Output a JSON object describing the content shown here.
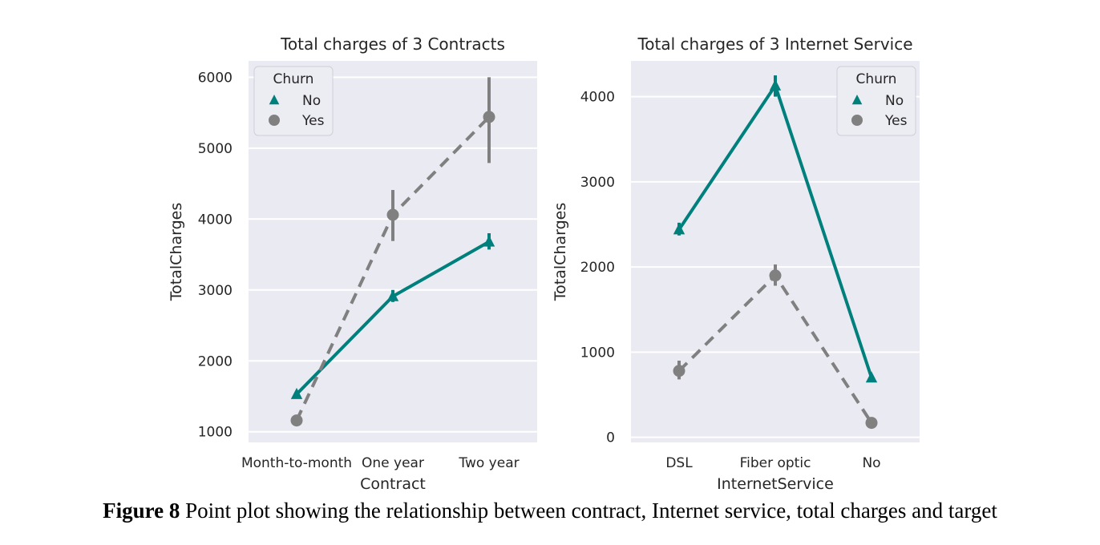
{
  "colors": {
    "no": "#00807c",
    "yes": "#808080",
    "panel_bg": "#eaeaf2",
    "grid": "#ffffff"
  },
  "chart_data": [
    {
      "type": "point",
      "title": "Total charges of 3 Contracts",
      "xlabel": "Contract",
      "ylabel": "TotalCharges",
      "categories": [
        "Month-to-month",
        "One year",
        "Two year"
      ],
      "ylim": [
        850,
        6230
      ],
      "yticks": [
        1000,
        2000,
        3000,
        4000,
        5000,
        6000
      ],
      "grid": true,
      "legend": {
        "title": "Churn",
        "placement": "top-left"
      },
      "series": [
        {
          "name": "No",
          "marker": "triangle",
          "linestyle": "solid",
          "color": "#00807c",
          "values": [
            1530,
            2910,
            3680
          ],
          "ci": [
            [
              1490,
              1570
            ],
            [
              2830,
              3000
            ],
            [
              3570,
              3800
            ]
          ]
        },
        {
          "name": "Yes",
          "marker": "circle",
          "linestyle": "dashed",
          "color": "#808080",
          "values": [
            1160,
            4060,
            5440
          ],
          "ci": [
            [
              1100,
              1230
            ],
            [
              3690,
              4410
            ],
            [
              4790,
              6000
            ]
          ]
        }
      ]
    },
    {
      "type": "point",
      "title": "Total charges of 3 Internet Service",
      "xlabel": "InternetService",
      "ylabel": "TotalCharges",
      "categories": [
        "DSL",
        "Fiber optic",
        "No"
      ],
      "ylim": [
        -60,
        4420
      ],
      "yticks": [
        0,
        1000,
        2000,
        3000,
        4000
      ],
      "grid": true,
      "legend": {
        "title": "Churn",
        "placement": "top-right"
      },
      "series": [
        {
          "name": "No",
          "marker": "triangle",
          "linestyle": "solid",
          "color": "#00807c",
          "values": [
            2440,
            4130,
            700
          ],
          "ci": [
            [
              2370,
              2520
            ],
            [
              4000,
              4250
            ],
            [
              680,
              720
            ]
          ]
        },
        {
          "name": "Yes",
          "marker": "circle",
          "linestyle": "dashed",
          "color": "#808080",
          "values": [
            780,
            1900,
            170
          ],
          "ci": [
            [
              680,
              900
            ],
            [
              1780,
              2030
            ],
            [
              150,
              190
            ]
          ]
        }
      ]
    }
  ],
  "caption": {
    "label": "Figure 8",
    "text": " Point plot showing the relationship between contract, Internet service, total charges and target"
  }
}
